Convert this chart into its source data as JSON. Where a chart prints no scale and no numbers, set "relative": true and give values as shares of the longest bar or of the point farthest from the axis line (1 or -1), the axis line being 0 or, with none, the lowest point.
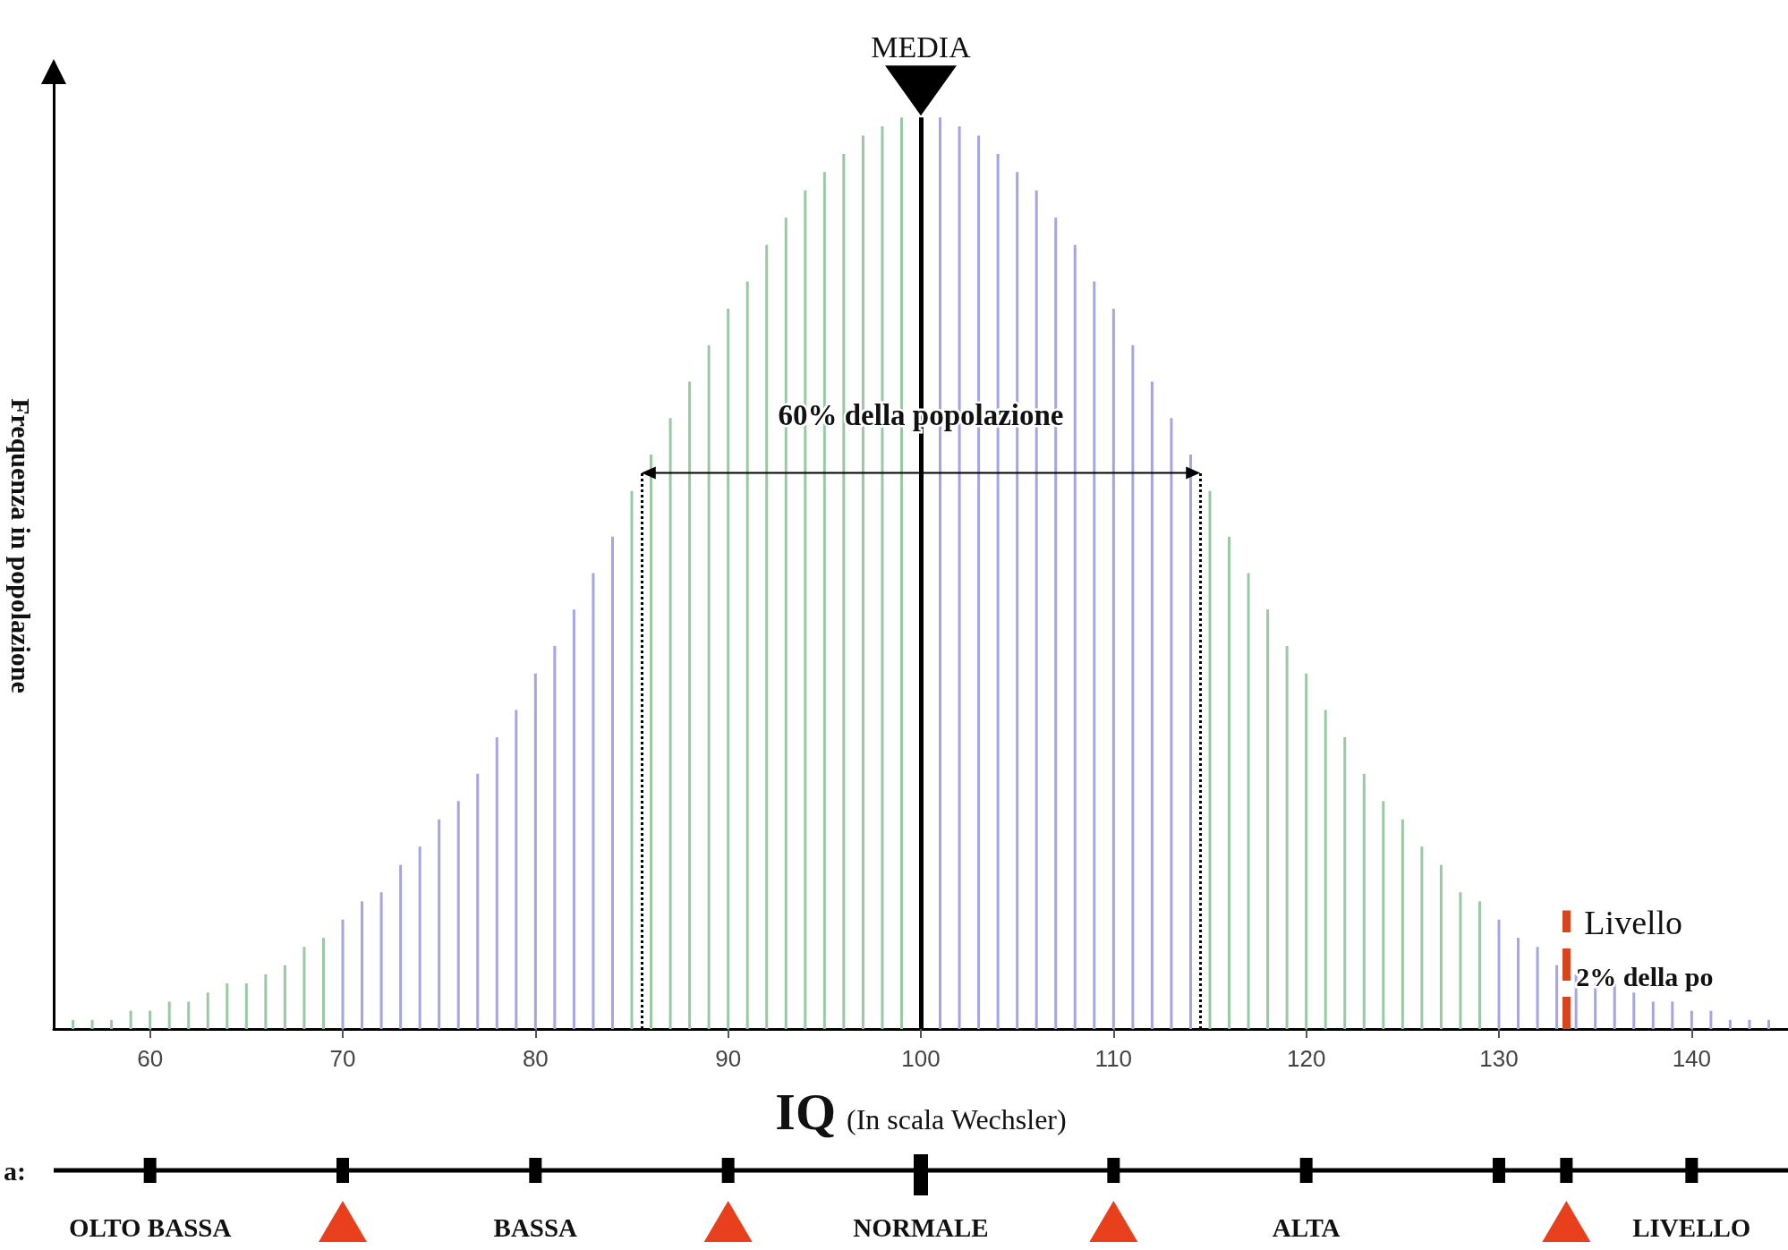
{
  "chart_data": {
    "type": "bar",
    "relative": true,
    "xlabel": "IQ (In scala Wechsler)",
    "ylabel": "Frequenza in popolazione",
    "x": [
      56,
      57,
      58,
      59,
      60,
      61,
      62,
      63,
      64,
      65,
      66,
      67,
      68,
      69,
      70,
      71,
      72,
      73,
      74,
      75,
      76,
      77,
      78,
      79,
      80,
      81,
      82,
      83,
      84,
      85,
      86,
      87,
      88,
      89,
      90,
      91,
      92,
      93,
      94,
      95,
      96,
      97,
      98,
      99,
      100,
      101,
      102,
      103,
      104,
      105,
      106,
      107,
      108,
      109,
      110,
      111,
      112,
      113,
      114,
      115,
      116,
      117,
      118,
      119,
      120,
      121,
      122,
      123,
      124,
      125,
      126,
      127,
      128,
      129,
      130,
      131,
      132,
      133,
      134,
      135,
      136,
      137,
      138,
      139,
      140,
      141,
      142,
      143,
      144
    ],
    "values": [
      0.01,
      0.01,
      0.01,
      0.02,
      0.02,
      0.03,
      0.03,
      0.04,
      0.05,
      0.05,
      0.06,
      0.07,
      0.09,
      0.1,
      0.12,
      0.14,
      0.15,
      0.18,
      0.2,
      0.23,
      0.25,
      0.28,
      0.32,
      0.35,
      0.39,
      0.42,
      0.46,
      0.5,
      0.54,
      0.59,
      0.63,
      0.67,
      0.71,
      0.75,
      0.79,
      0.82,
      0.86,
      0.89,
      0.92,
      0.94,
      0.96,
      0.98,
      0.99,
      1.0,
      null,
      1.0,
      0.99,
      0.98,
      0.96,
      0.94,
      0.92,
      0.89,
      0.86,
      0.82,
      0.79,
      0.75,
      0.71,
      0.67,
      0.63,
      0.59,
      0.54,
      0.5,
      0.46,
      0.42,
      0.39,
      0.35,
      0.32,
      0.28,
      0.25,
      0.23,
      0.2,
      0.18,
      0.15,
      0.14,
      0.12,
      0.1,
      0.09,
      0.07,
      0.06,
      0.05,
      0.05,
      0.04,
      0.03,
      0.03,
      0.02,
      0.02,
      0.01,
      0.01,
      0.01
    ],
    "colors": [
      "#98c9a3",
      "#98c9a3",
      "#98c9a3",
      "#98c9a3",
      "#98c9a3",
      "#98c9a3",
      "#98c9a3",
      "#98c9a3",
      "#98c9a3",
      "#98c9a3",
      "#98c9a3",
      "#98c9a3",
      "#98c9a3",
      "#98c9a3",
      "#a4a4e6",
      "#a4a4e6",
      "#a4a4e6",
      "#a4a4e6",
      "#a4a4e6",
      "#a4a4e6",
      "#a4a4e6",
      "#a4a4e6",
      "#a4a4e6",
      "#a4a4e6",
      "#a4a4e6",
      "#a4a4e6",
      "#a4a4e6",
      "#a4a4e6",
      "#a4a4e6",
      "#98c9a3",
      "#98c9a3",
      "#98c9a3",
      "#98c9a3",
      "#98c9a3",
      "#98c9a3",
      "#98c9a3",
      "#98c9a3",
      "#98c9a3",
      "#98c9a3",
      "#98c9a3",
      "#98c9a3",
      "#98c9a3",
      "#98c9a3",
      "#98c9a3",
      "#a4a4e6",
      "#a4a4e6",
      "#a4a4e6",
      "#a4a4e6",
      "#a4a4e6",
      "#a4a4e6",
      "#a4a4e6",
      "#a4a4e6",
      "#a4a4e6",
      "#a4a4e6",
      "#a4a4e6",
      "#a4a4e6",
      "#a4a4e6",
      "#a4a4e6",
      "#a4a4e6",
      "#98c9a3",
      "#98c9a3",
      "#98c9a3",
      "#98c9a3",
      "#98c9a3",
      "#98c9a3",
      "#98c9a3",
      "#98c9a3",
      "#98c9a3",
      "#98c9a3",
      "#98c9a3",
      "#98c9a3",
      "#98c9a3",
      "#98c9a3",
      "#98c9a3",
      "#a4a4e6",
      "#a4a4e6",
      "#a4a4e6",
      "#a4a4e6",
      "#a4a4e6",
      "#a4a4e6",
      "#a4a4e6",
      "#a4a4e6",
      "#a4a4e6",
      "#a4a4e6",
      "#a4a4e6",
      "#a4a4e6",
      "#a4a4e6",
      "#a4a4e6",
      "#a4a4e6"
    ],
    "xlim": [
      55,
      145
    ],
    "xticks": [
      60,
      70,
      80,
      90,
      100,
      110,
      120,
      130,
      140
    ],
    "ref_lines": [
      {
        "axis": "x",
        "value": 100,
        "label": "MEDIA",
        "color": "#000000"
      },
      {
        "axis": "x",
        "value": 133.5,
        "label": "Livello",
        "color": "#d9441c",
        "line_style": "dashed"
      },
      {
        "axis": "x",
        "value": 85.5,
        "color": "#000000",
        "line_style": "dotted"
      },
      {
        "axis": "x",
        "value": 114.5,
        "color": "#000000",
        "line_style": "dotted"
      }
    ],
    "annotations": [
      {
        "text": "60% della popolazione",
        "x": 100,
        "y": 0.67
      },
      {
        "text": "2% della po",
        "x": 134,
        "y": 0.047
      },
      "a:",
      "OLTO BASSA",
      "BASSA",
      "NORMALE",
      "ALTA",
      "LIVELLO"
    ]
  }
}
